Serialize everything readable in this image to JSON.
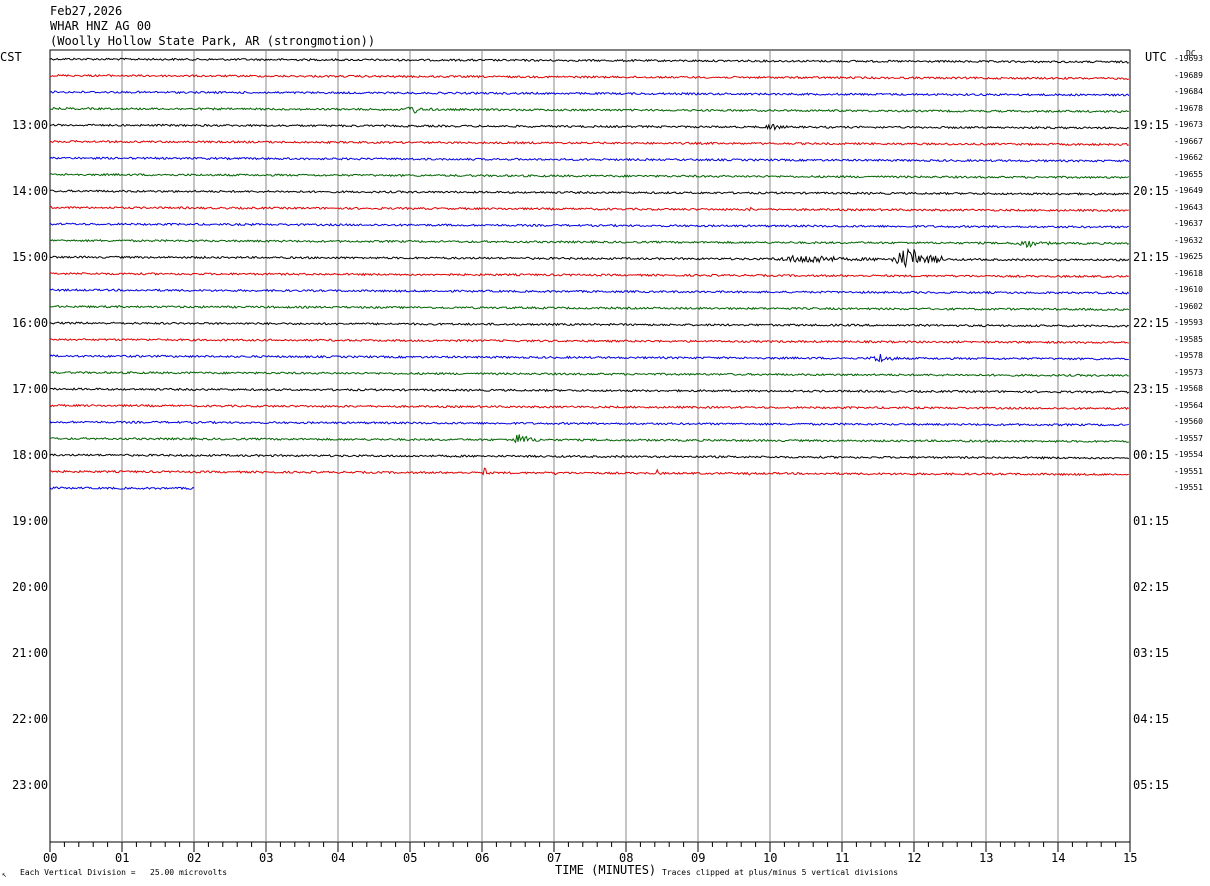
{
  "header": {
    "date": "Feb27,2026",
    "station": "WHAR HNZ AG 00",
    "location": "(Woolly Hollow State Park, AR (strongmotion))"
  },
  "labels": {
    "left_tz": "CST",
    "right_tz": "UTC",
    "dc_label": "DC",
    "xlabel": "TIME (MINUTES)",
    "scale_note": "Each Vertical Division =   25.00 microvolts",
    "clip_note": "Traces clipped at plus/minus 5 vertical divisions",
    "corner_mark": "↖"
  },
  "left_times": [
    "13:00",
    "14:00",
    "15:00",
    "16:00",
    "17:00",
    "18:00",
    "19:00",
    "20:00",
    "21:00",
    "22:00",
    "23:00"
  ],
  "right_times": [
    "19:15",
    "20:15",
    "21:15",
    "22:15",
    "23:15",
    "00:15",
    "01:15",
    "02:15",
    "03:15",
    "04:15",
    "05:15"
  ],
  "dc_values": [
    "-19693",
    "-19689",
    "-19684",
    "-19678",
    "-19673",
    "-19667",
    "-19662",
    "-19655",
    "-19649",
    "-19643",
    "-19637",
    "-19632",
    "-19625",
    "-19618",
    "-19610",
    "-19602",
    "-19593",
    "-19585",
    "-19578",
    "-19573",
    "-19568",
    "-19564",
    "-19560",
    "-19557",
    "-19554",
    "-19551",
    "-19551"
  ],
  "x_ticks": [
    "00",
    "01",
    "02",
    "03",
    "04",
    "05",
    "06",
    "07",
    "08",
    "09",
    "10",
    "11",
    "12",
    "13",
    "14",
    "15"
  ],
  "colors": {
    "trace_cycle": [
      "#000000",
      "#e00000",
      "#0000e0",
      "#006400"
    ],
    "grid": "#888888"
  },
  "chart_data": {
    "type": "line",
    "title": "WHAR HNZ AG 00",
    "xlabel": "TIME (MINUTES)",
    "xlim": [
      0,
      15
    ],
    "trace_minutes": 15,
    "trace_count": 27,
    "last_trace_end_minute": 2,
    "events": [
      {
        "trace": 3,
        "minute": 4.9,
        "amp": 5,
        "dur": 0.4
      },
      {
        "trace": 4,
        "minute": 9.9,
        "amp": 4,
        "dur": 0.4
      },
      {
        "trace": 9,
        "minute": 9.7,
        "amp": 3,
        "dur": 0.1
      },
      {
        "trace": 11,
        "minute": 13.4,
        "amp": 5,
        "dur": 0.5
      },
      {
        "trace": 12,
        "minute": 10.0,
        "amp": 5,
        "dur": 1.6
      },
      {
        "trace": 12,
        "minute": 11.7,
        "amp": 13,
        "dur": 0.7
      },
      {
        "trace": 18,
        "minute": 11.4,
        "amp": 6,
        "dur": 0.4
      },
      {
        "trace": 23,
        "minute": 6.4,
        "amp": 7,
        "dur": 0.4
      },
      {
        "trace": 25,
        "minute": 6.0,
        "amp": 6,
        "dur": 0.1
      },
      {
        "trace": 25,
        "minute": 7.0,
        "amp": 3,
        "dur": 0.1
      },
      {
        "trace": 25,
        "minute": 8.4,
        "amp": 4,
        "dur": 0.1
      },
      {
        "trace": 25,
        "minute": 9.7,
        "amp": 3,
        "dur": 0.1
      }
    ]
  }
}
